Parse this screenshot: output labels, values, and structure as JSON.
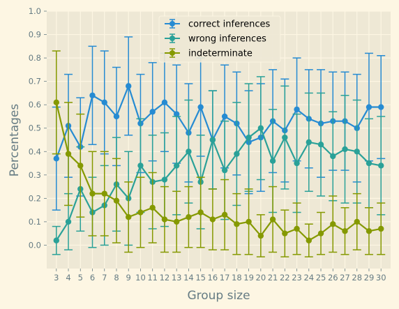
{
  "chart_data": {
    "type": "line",
    "xlabel": "Group size",
    "ylabel": "Percentages",
    "ylim": [
      -0.1,
      1.0
    ],
    "yticks": [
      "0.0",
      "0.1",
      "0.2",
      "0.3",
      "0.4",
      "0.5",
      "0.6",
      "0.7",
      "0.8",
      "0.9",
      "1.0"
    ],
    "x": [
      3,
      4,
      5,
      6,
      7,
      8,
      9,
      10,
      11,
      12,
      13,
      14,
      15,
      16,
      17,
      18,
      19,
      20,
      21,
      22,
      23,
      24,
      25,
      26,
      27,
      28,
      29,
      30
    ],
    "grid": true,
    "legend_position": "top-center",
    "error_bars": true,
    "series": [
      {
        "name": "correct inferences",
        "color": "#268bd2",
        "values": [
          0.37,
          0.51,
          0.42,
          0.64,
          0.61,
          0.55,
          0.68,
          0.52,
          0.57,
          0.61,
          0.56,
          0.48,
          0.59,
          0.45,
          0.55,
          0.52,
          0.44,
          0.46,
          0.53,
          0.49,
          0.58,
          0.54,
          0.52,
          0.53,
          0.53,
          0.5,
          0.59,
          0.59
        ],
        "errors": [
          0.22,
          0.22,
          0.21,
          0.21,
          0.22,
          0.21,
          0.21,
          0.21,
          0.21,
          0.21,
          0.21,
          0.21,
          0.21,
          0.21,
          0.22,
          0.22,
          0.22,
          0.23,
          0.22,
          0.22,
          0.22,
          0.21,
          0.23,
          0.21,
          0.21,
          0.23,
          0.23,
          0.22
        ]
      },
      {
        "name": "wrong inferences",
        "color": "#2aa198",
        "values": [
          0.02,
          0.1,
          0.24,
          0.14,
          0.17,
          0.26,
          0.2,
          0.34,
          0.27,
          0.28,
          0.34,
          0.4,
          0.27,
          0.45,
          0.32,
          0.39,
          0.46,
          0.5,
          0.36,
          0.46,
          0.35,
          0.44,
          0.43,
          0.38,
          0.41,
          0.4,
          0.35,
          0.34
        ],
        "errors": [
          0.06,
          0.12,
          0.18,
          0.15,
          0.17,
          0.2,
          0.2,
          0.2,
          0.2,
          0.2,
          0.21,
          0.22,
          0.2,
          0.21,
          0.21,
          0.22,
          0.23,
          0.22,
          0.22,
          0.22,
          0.21,
          0.21,
          0.22,
          0.19,
          0.23,
          0.22,
          0.19,
          0.21
        ]
      },
      {
        "name": "indeterminate",
        "color": "#859900",
        "values": [
          0.61,
          0.39,
          0.34,
          0.22,
          0.22,
          0.19,
          0.12,
          0.14,
          0.16,
          0.11,
          0.1,
          0.12,
          0.14,
          0.11,
          0.13,
          0.09,
          0.1,
          0.04,
          0.11,
          0.05,
          0.07,
          0.02,
          0.05,
          0.09,
          0.06,
          0.1,
          0.06,
          0.07
        ],
        "errors": [
          0.22,
          0.22,
          0.22,
          0.18,
          0.18,
          0.18,
          0.15,
          0.15,
          0.15,
          0.14,
          0.13,
          0.13,
          0.15,
          0.13,
          0.15,
          0.13,
          0.14,
          0.09,
          0.14,
          0.1,
          0.11,
          0.07,
          0.09,
          0.12,
          0.1,
          0.12,
          0.1,
          0.11
        ]
      }
    ]
  },
  "style": {
    "background": "#fdf6e3",
    "plot_background": "#eee8d5",
    "grid_color": "#fdf6e3",
    "text_color": "#657b83"
  }
}
